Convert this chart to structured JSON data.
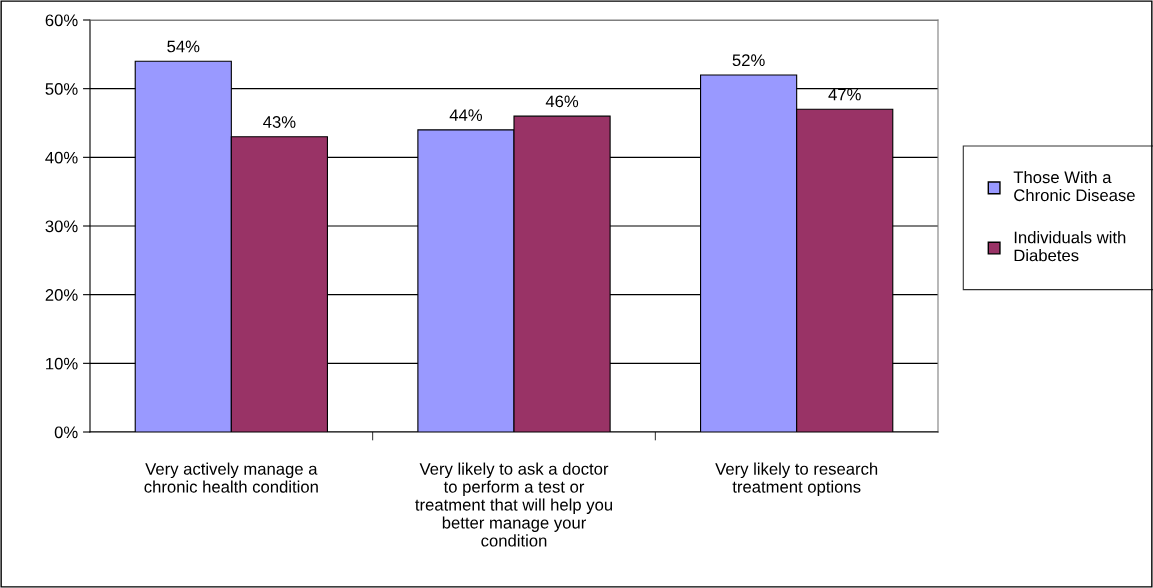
{
  "chart_data": {
    "type": "bar",
    "categories": [
      "Very actively manage a\nchronic health condition",
      "Very likely to ask a doctor\nto perform a test or\ntreatment that will help you\nbetter manage your\ncondition",
      "Very likely to research\ntreatment options"
    ],
    "series": [
      {
        "name": "Those With a\nChronic Disease",
        "color": "#9999ff",
        "values": [
          54,
          44,
          52
        ],
        "value_labels": [
          "54%",
          "44%",
          "52%"
        ]
      },
      {
        "name": "Individuals with\nDiabetes",
        "color": "#993366",
        "values": [
          43,
          46,
          47
        ],
        "value_labels": [
          "43%",
          "46%",
          "47%"
        ]
      }
    ],
    "ylim": [
      0,
      60
    ],
    "yticks": [
      {
        "value": 0,
        "label": "0%"
      },
      {
        "value": 10,
        "label": "10%"
      },
      {
        "value": 20,
        "label": "20%"
      },
      {
        "value": 30,
        "label": "30%"
      },
      {
        "value": 40,
        "label": "40%"
      },
      {
        "value": 50,
        "label": "50%"
      },
      {
        "value": 60,
        "label": "60%"
      }
    ],
    "grid": "y",
    "legend": "right"
  }
}
